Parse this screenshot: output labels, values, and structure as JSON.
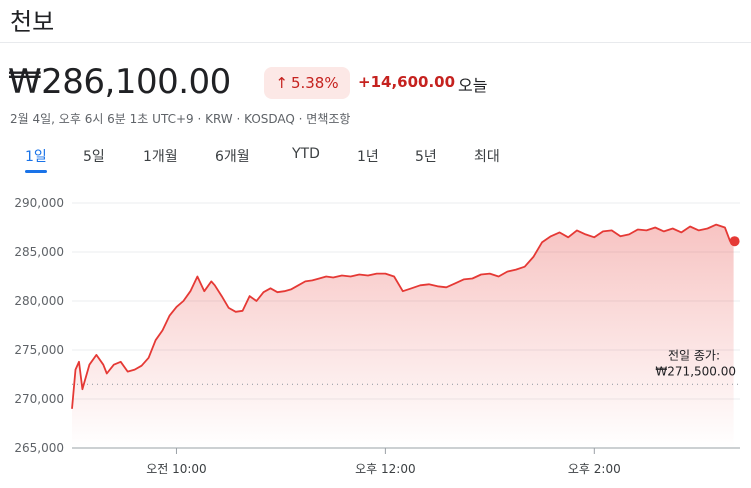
{
  "header": {
    "title": "천보",
    "price": "₩286,100.00",
    "change_percent": "5.38%",
    "change_amount": "+14,600.00",
    "today_label": "오늘",
    "meta": "2월 4일, 오후 6시 6분 1초 UTC+9 · KRW · KOSDAQ · 면책조항"
  },
  "tabs": [
    {
      "label": "1일",
      "active": true
    },
    {
      "label": "5일",
      "active": false
    },
    {
      "label": "1개월",
      "active": false
    },
    {
      "label": "6개월",
      "active": false
    },
    {
      "label": "YTD",
      "active": false
    },
    {
      "label": "1년",
      "active": false
    },
    {
      "label": "5년",
      "active": false
    },
    {
      "label": "최대",
      "active": false
    }
  ],
  "colors": {
    "line": "#e53935",
    "up": "#c5221f",
    "badge_bg": "#fce8e6",
    "tab_active": "#1a73e8"
  },
  "chart_data": {
    "type": "area",
    "ylim": [
      265000,
      290000
    ],
    "yticks": [
      290000,
      285000,
      280000,
      275000,
      270000,
      265000
    ],
    "ytick_labels": [
      "290,000",
      "285,000",
      "280,000",
      "275,000",
      "270,000",
      "265,000"
    ],
    "xticks": [
      {
        "time": "10:00",
        "label": "오전 10:00"
      },
      {
        "time": "12:00",
        "label": "오후 12:00"
      },
      {
        "time": "14:00",
        "label": "오후 2:00"
      }
    ],
    "xlim": [
      "09:00",
      "15:30"
    ],
    "previous_close": 271500,
    "previous_close_label": "전일 종가:",
    "previous_close_value": "₩271,500.00",
    "series": [
      {
        "time": [
          "09:00",
          "09:02",
          "09:04",
          "09:06",
          "09:10",
          "09:14",
          "09:18",
          "09:20",
          "09:24",
          "09:28",
          "09:32",
          "09:36",
          "09:40",
          "09:44",
          "09:48",
          "09:52",
          "09:56",
          "10:00",
          "10:04",
          "10:08",
          "10:12",
          "10:16",
          "10:20",
          "10:22",
          "10:26",
          "10:30",
          "10:34",
          "10:38",
          "10:42",
          "10:46",
          "10:50",
          "10:54",
          "10:58",
          "11:02",
          "11:06",
          "11:10",
          "11:14",
          "11:18",
          "11:22",
          "11:26",
          "11:30",
          "11:35",
          "11:40",
          "11:45",
          "11:50",
          "11:55",
          "12:00",
          "12:05",
          "12:10",
          "12:15",
          "12:20",
          "12:25",
          "12:30",
          "12:35",
          "12:40",
          "12:45",
          "12:50",
          "12:55",
          "13:00",
          "13:05",
          "13:10",
          "13:15",
          "13:20",
          "13:25",
          "13:30",
          "13:35",
          "13:40",
          "13:45",
          "13:50",
          "13:55",
          "14:00",
          "14:05",
          "14:10",
          "14:15",
          "14:20",
          "14:25",
          "14:30",
          "14:35",
          "14:40",
          "14:45",
          "14:50",
          "14:55",
          "15:00",
          "15:05",
          "15:10",
          "15:15",
          "15:18",
          "15:20"
        ],
        "values": [
          269000,
          273000,
          273800,
          271000,
          273500,
          274500,
          273500,
          272600,
          273500,
          273800,
          272800,
          273000,
          273400,
          274200,
          276000,
          277000,
          278500,
          279400,
          280000,
          281000,
          282500,
          281000,
          282000,
          281600,
          280500,
          279300,
          278900,
          279000,
          280500,
          280000,
          280900,
          281300,
          280900,
          281000,
          281200,
          281600,
          282000,
          282100,
          282300,
          282500,
          282400,
          282600,
          282500,
          282700,
          282600,
          282800,
          282800,
          282500,
          281000,
          281300,
          281600,
          281700,
          281500,
          281400,
          281800,
          282200,
          282300,
          282700,
          282800,
          282500,
          283000,
          283200,
          283500,
          284500,
          286000,
          286600,
          287000,
          286500,
          287200,
          286800,
          286500,
          287100,
          287200,
          286600,
          286800,
          287300,
          287200,
          287500,
          287100,
          287400,
          287000,
          287600,
          287200,
          287400,
          287800,
          287500,
          286100,
          286100
        ]
      }
    ]
  }
}
